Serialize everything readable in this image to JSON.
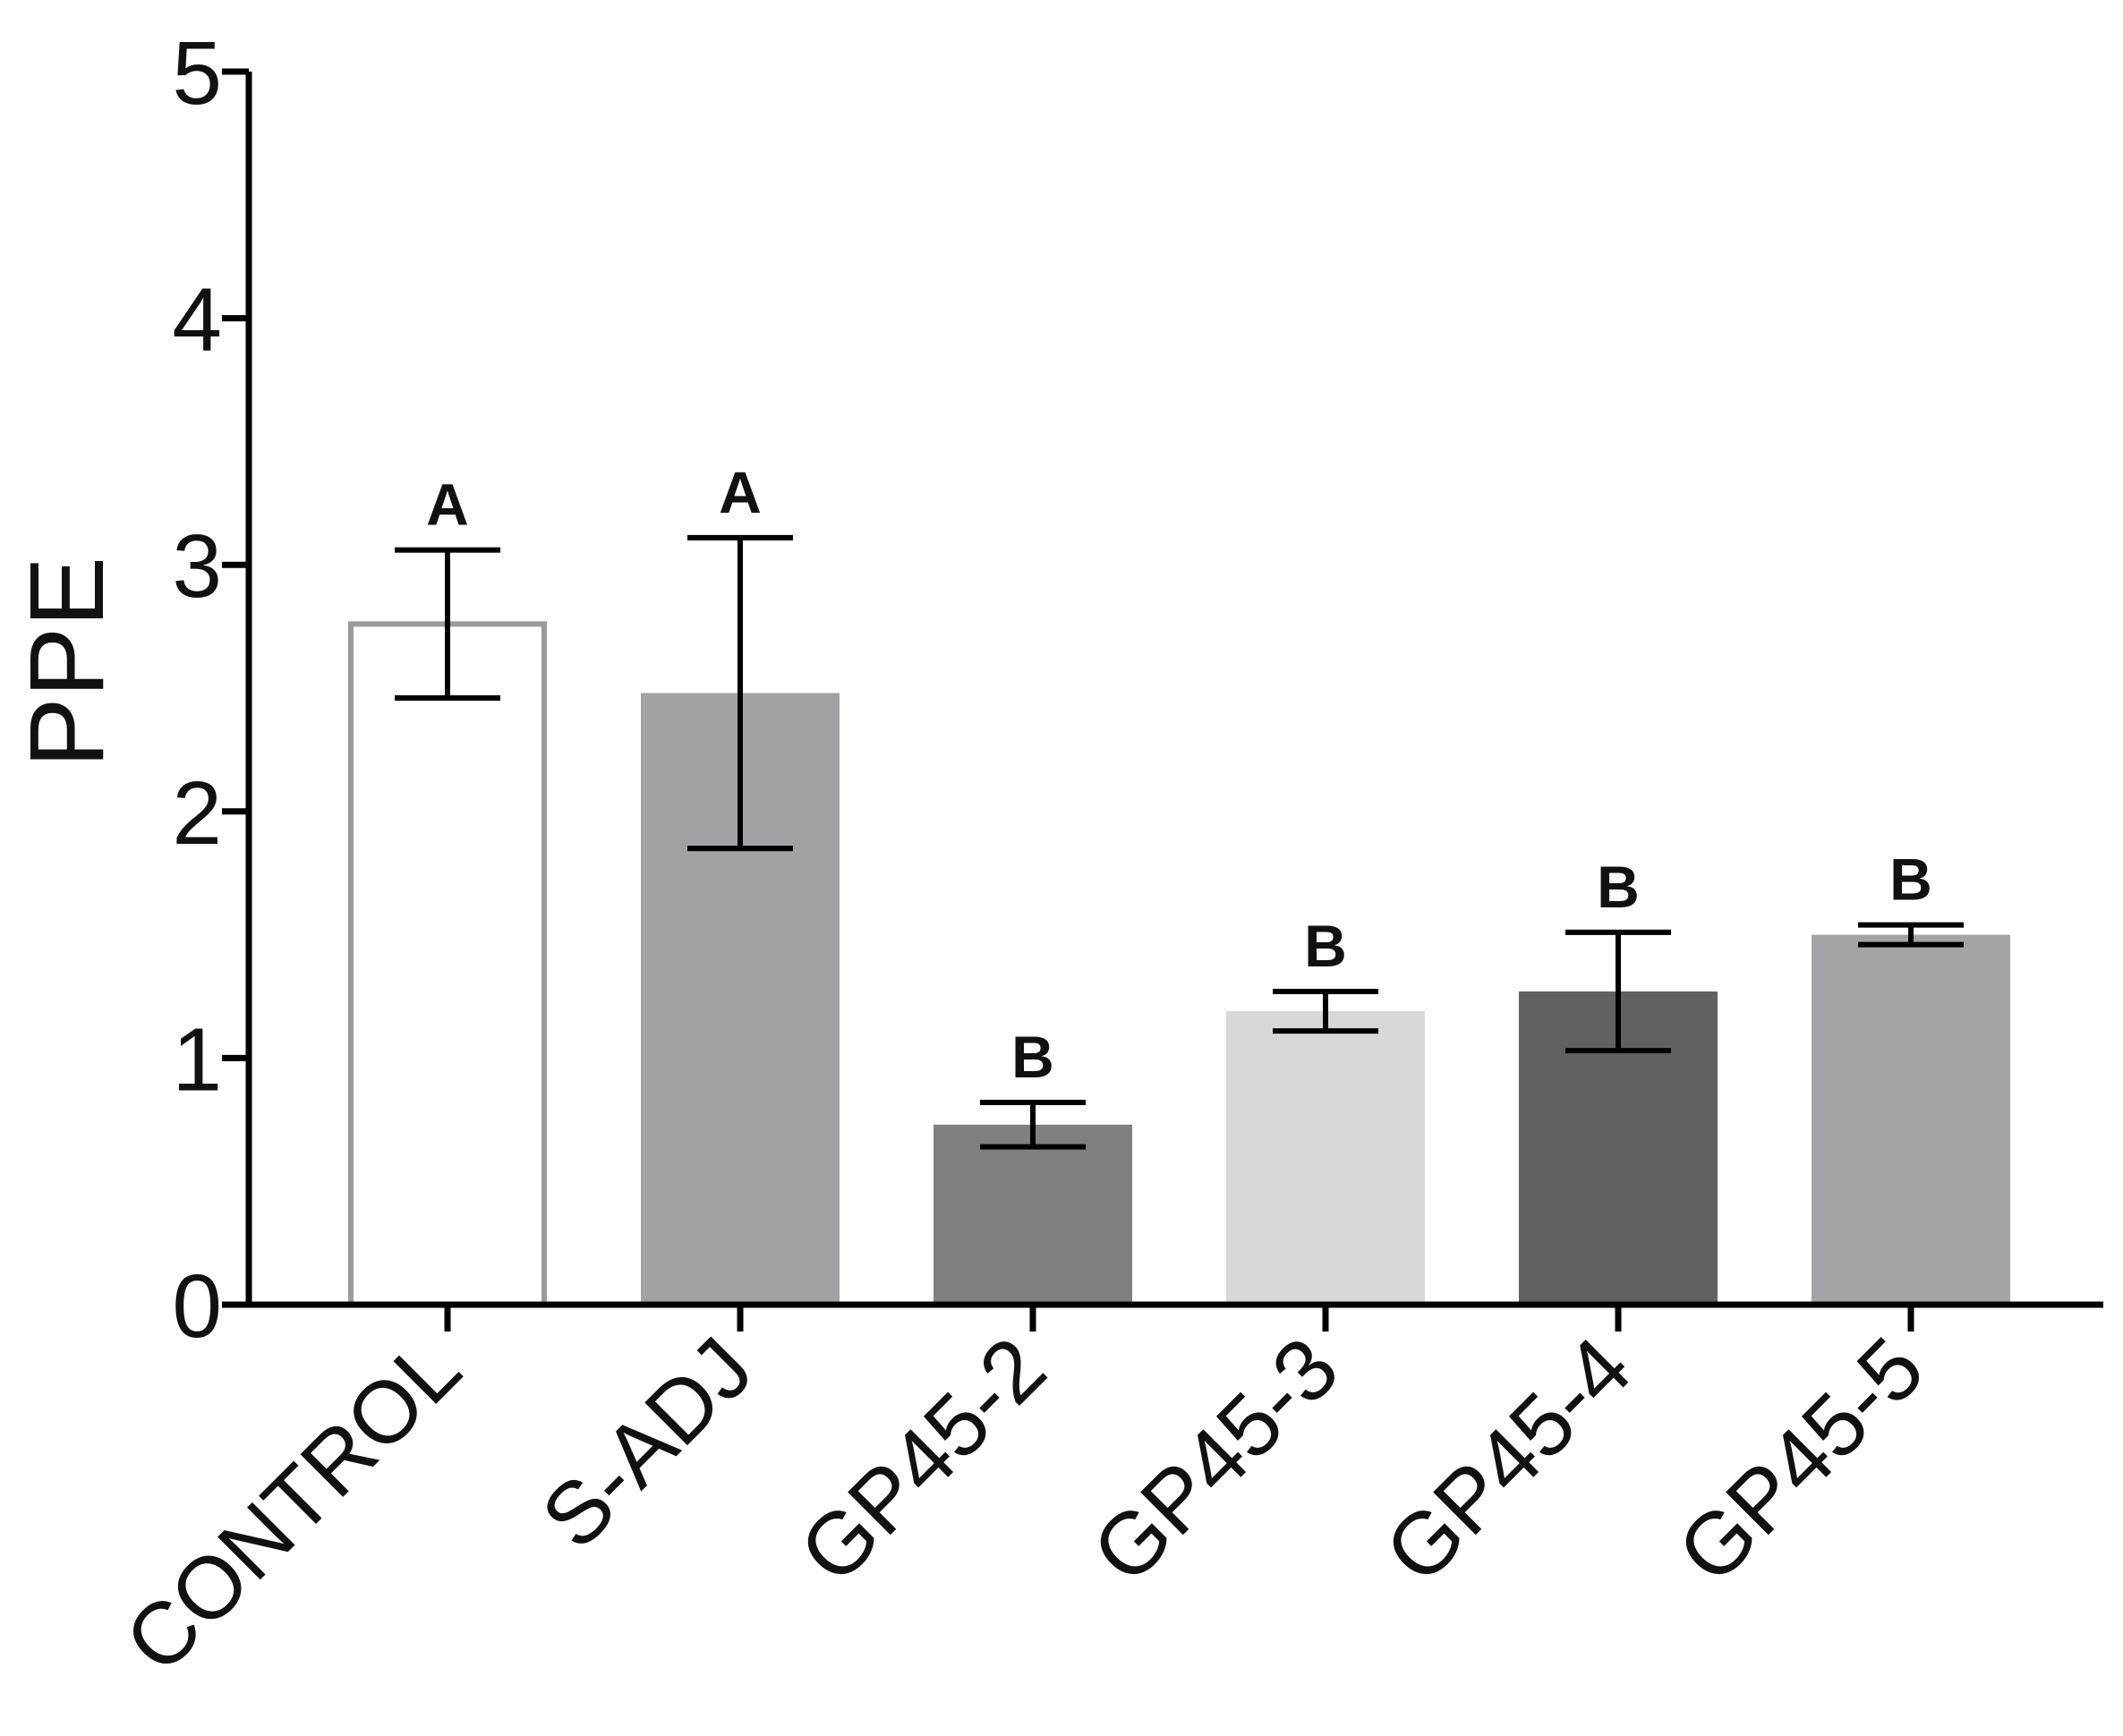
{
  "chart_data": {
    "type": "bar",
    "title": "",
    "xlabel": "",
    "ylabel": "PPE",
    "ylim": [
      0,
      5
    ],
    "yticks": [
      0,
      1,
      2,
      3,
      4,
      5
    ],
    "grid": false,
    "categories": [
      "CONTROL",
      "S-ADJ",
      "GP45-2",
      "GP45-3",
      "GP45-4",
      "GP45-5"
    ],
    "values": [
      2.76,
      2.48,
      0.73,
      1.19,
      1.27,
      1.5
    ],
    "errors": [
      0.3,
      0.63,
      0.09,
      0.08,
      0.24,
      0.04
    ],
    "significance": [
      "A",
      "A",
      "B",
      "B",
      "B",
      "B"
    ],
    "bar_colors": [
      "#ffffff",
      "#a2a1a6",
      "#808080",
      "#d8d8d8",
      "#616161",
      "#a4a3a8"
    ],
    "bar_edge_colors": [
      "#9a9a9a",
      "#a2a1a6",
      "#808080",
      "#d8d8d8",
      "#616161",
      "#a4a3a8"
    ]
  }
}
